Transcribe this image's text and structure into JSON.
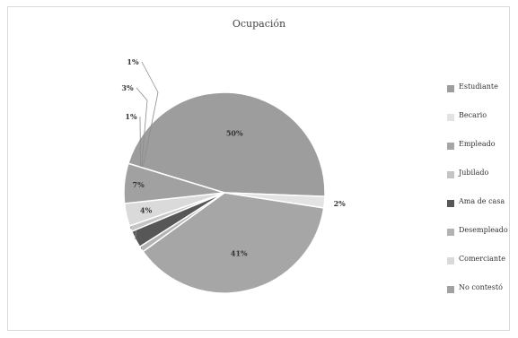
{
  "chart_data": {
    "type": "pie",
    "title": "Ocupación",
    "categories": [
      "Estudiante",
      "Becario",
      "Empleado",
      "Jubilado",
      "Ama de casa",
      "Desempleado",
      "Comerciante",
      "No contestó"
    ],
    "values": [
      50,
      2,
      41,
      1,
      3,
      1,
      4,
      7
    ],
    "value_labels": [
      "50%",
      "2%",
      "41%",
      "1%",
      "3%",
      "1%",
      "4%",
      "7%"
    ],
    "colors": [
      "#9d9d9d",
      "#e3e3e3",
      "#a6a6a6",
      "#c4c4c4",
      "#575757",
      "#b3b3b3",
      "#dadada",
      "#a1a1a1"
    ],
    "legend_position": "right"
  }
}
